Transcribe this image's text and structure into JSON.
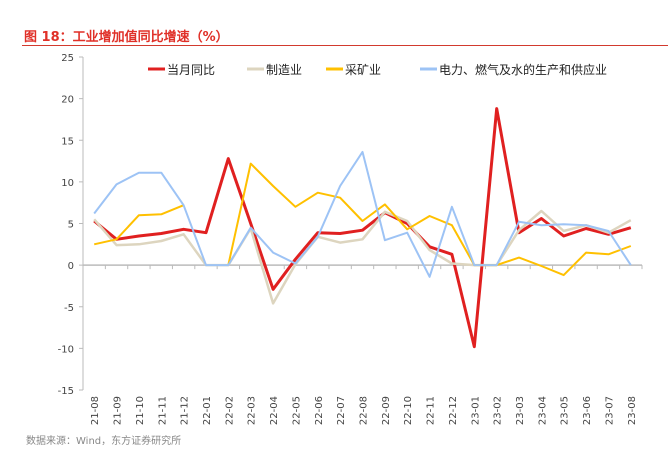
{
  "title": "图 18：工业增加值同比增速（%）",
  "source": "数据来源：Wind，东方证券研究所",
  "chart_data": {
    "type": "line",
    "title": "图 18：工业增加值同比增速（%）",
    "xlabel": "",
    "ylabel": "",
    "ylim": [
      -15,
      25
    ],
    "yticks": [
      25,
      20,
      15,
      10,
      5,
      0,
      -5,
      -10,
      -15
    ],
    "legend_position": "top",
    "grid": false,
    "categories": [
      "21-08",
      "21-09",
      "21-10",
      "21-11",
      "21-12",
      "22-01",
      "22-02",
      "22-03",
      "22-04",
      "22-05",
      "22-06",
      "22-07",
      "22-08",
      "22-09",
      "22-10",
      "22-11",
      "22-12",
      "23-01",
      "23-02",
      "23-03",
      "23-04",
      "23-05",
      "23-06",
      "23-07",
      "23-08"
    ],
    "series": [
      {
        "name": "当月同比",
        "color": "#e02020",
        "width": 3,
        "values": [
          5.3,
          3.1,
          3.5,
          3.8,
          4.3,
          3.9,
          12.8,
          5.0,
          -2.9,
          0.7,
          3.9,
          3.8,
          4.2,
          6.3,
          5.0,
          2.2,
          1.3,
          -9.8,
          18.8,
          3.9,
          5.6,
          3.5,
          4.4,
          3.7,
          4.5
        ]
      },
      {
        "name": "制造业",
        "color": "#ddd5bf",
        "width": 2.5,
        "values": [
          5.5,
          2.4,
          2.5,
          2.9,
          3.7,
          0,
          0,
          4.4,
          -4.6,
          0.1,
          3.4,
          2.7,
          3.1,
          6.4,
          5.3,
          1.8,
          0.2,
          0,
          0,
          4.2,
          6.5,
          4.1,
          4.8,
          3.9,
          5.4
        ]
      },
      {
        "name": "采矿业",
        "color": "#ffc000",
        "width": 2,
        "values": [
          2.5,
          3.1,
          6.0,
          6.1,
          7.2,
          null,
          0,
          12.2,
          9.5,
          7.0,
          8.7,
          8.1,
          5.3,
          7.3,
          4.3,
          5.9,
          4.8,
          0,
          0,
          0.9,
          -0.1,
          -1.2,
          1.5,
          1.3,
          2.3
        ]
      },
      {
        "name": "电力、燃气及水的生产和供应业",
        "color": "#9dc3f5",
        "width": 2,
        "values": [
          6.2,
          9.7,
          11.1,
          11.1,
          7.2,
          0,
          0,
          4.5,
          1.5,
          0.2,
          3.4,
          9.5,
          13.6,
          3.0,
          3.9,
          -1.4,
          7.0,
          0,
          0,
          5.2,
          4.8,
          4.9,
          4.8,
          4.1,
          0
        ]
      }
    ]
  }
}
